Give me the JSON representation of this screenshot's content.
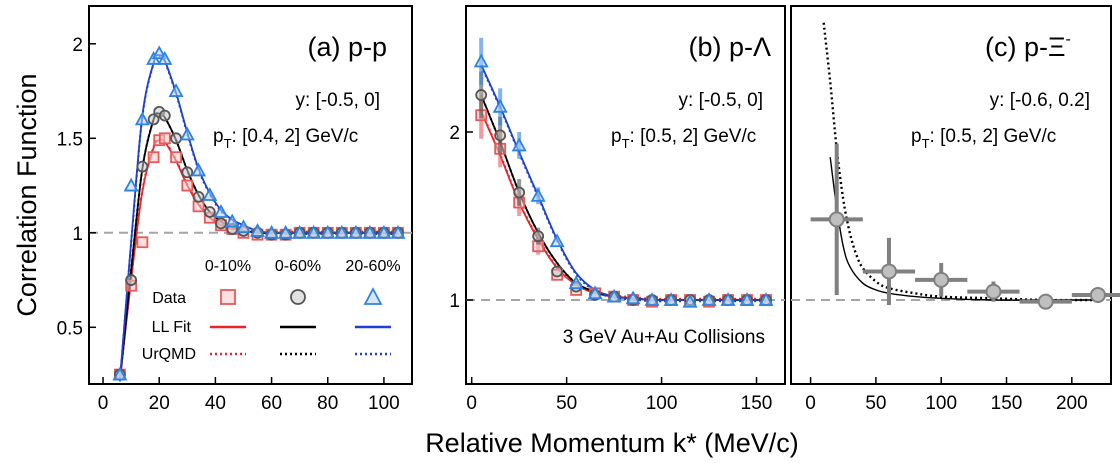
{
  "figure": {
    "y_axis_label": "Correlation Function",
    "x_axis_label": "Relative Momentum k* (MeV/c)",
    "baseline": 1,
    "baseline_color": "#a6a6a6"
  },
  "colors": {
    "c0_10": "#e8595a",
    "c0_10_fill": "#f6c6c6",
    "c0_60": "#555555",
    "c0_60_fill": "#c8c8c8",
    "c20_60": "#2f83e0",
    "c20_60_fill": "#b3d4f6",
    "fit_0_10": "#e8262a",
    "fit_0_60": "#000000",
    "fit_20_60": "#1e3fcf",
    "xi_data": "#808080",
    "xi_fill": "#bfbfbf"
  },
  "legend": {
    "centralities": [
      "0-10%",
      "0-60%",
      "20-60%"
    ],
    "rows": [
      "Data",
      "LL Fit",
      "UrQMD"
    ]
  },
  "panels": {
    "pp": {
      "title": "(a) p-p",
      "info_y": "y: [-0.5, 0]",
      "info_pt_main": "p",
      "info_pt_sub": "T",
      "info_pt_rest": ": [0.4, 2] GeV/c"
    },
    "pl": {
      "title": "(b) p-Λ",
      "info_y": "y: [-0.5, 0]",
      "info_pt_main": "p",
      "info_pt_sub": "T",
      "info_pt_rest": ": [0.5, 2] GeV/c",
      "note": "3 GeV Au+Au Collisions"
    },
    "px": {
      "title_main": "(c) p-Ξ",
      "title_sup": "-",
      "info_y": "y: [-0.6, 0.2]",
      "info_pt_main": "p",
      "info_pt_sub": "T",
      "info_pt_rest": ": [0.5, 2] GeV/c"
    }
  },
  "chart_data": [
    {
      "type": "scatter",
      "panel": "pp",
      "title": "(a) p-p",
      "xlim": [
        -5,
        110
      ],
      "ylim": [
        0.2,
        2.2
      ],
      "x_ticks": [
        0,
        20,
        40,
        60,
        80,
        100
      ],
      "y_ticks": [
        0.5,
        1,
        1.5,
        2
      ],
      "x": [
        6,
        10,
        14,
        18,
        20,
        22,
        26,
        30,
        34,
        38,
        42,
        46,
        50,
        55,
        60,
        65,
        70,
        75,
        80,
        85,
        90,
        95,
        100,
        105
      ],
      "series": [
        {
          "name": "0-10%",
          "data_y": [
            0.25,
            0.72,
            0.95,
            1.4,
            1.49,
            1.5,
            1.4,
            1.25,
            1.14,
            1.08,
            1.04,
            1.02,
            1.0,
            0.99,
            0.99,
            0.99,
            1.0,
            1.0,
            1.0,
            1.0,
            1.0,
            1.0,
            1.0,
            1.0
          ],
          "fit_y": [
            0.22,
            0.75,
            1.22,
            1.45,
            1.49,
            1.48,
            1.38,
            1.25,
            1.15,
            1.08,
            1.04,
            1.02,
            1.01,
            1.0,
            1.0,
            1.0,
            1.0,
            1.0,
            1.0,
            1.0,
            1.0,
            1.0,
            1.0,
            1.0
          ]
        },
        {
          "name": "0-60%",
          "data_y": [
            0.25,
            0.75,
            1.35,
            1.6,
            1.64,
            1.62,
            1.5,
            1.32,
            1.19,
            1.11,
            1.05,
            1.02,
            1.01,
            1.0,
            0.99,
            0.99,
            1.0,
            1.0,
            1.0,
            1.0,
            1.0,
            1.0,
            1.0,
            1.0
          ],
          "fit_y": [
            0.22,
            0.8,
            1.34,
            1.6,
            1.63,
            1.61,
            1.49,
            1.33,
            1.2,
            1.11,
            1.06,
            1.03,
            1.01,
            1.0,
            1.0,
            1.0,
            1.0,
            1.0,
            1.0,
            1.0,
            1.0,
            1.0,
            1.0,
            1.0
          ]
        },
        {
          "name": "20-60%",
          "data_y": [
            0.25,
            1.25,
            1.6,
            1.92,
            1.95,
            1.92,
            1.75,
            1.52,
            1.33,
            1.2,
            1.11,
            1.06,
            1.03,
            1.01,
            1.0,
            1.0,
            1.0,
            1.0,
            1.0,
            1.0,
            1.0,
            1.0,
            1.0,
            1.0
          ],
          "fit_y": [
            0.22,
            0.95,
            1.62,
            1.9,
            1.94,
            1.91,
            1.74,
            1.53,
            1.34,
            1.21,
            1.12,
            1.07,
            1.04,
            1.01,
            1.0,
            1.0,
            1.0,
            1.0,
            1.0,
            1.0,
            1.0,
            1.0,
            1.0,
            1.0
          ]
        }
      ]
    },
    {
      "type": "scatter",
      "panel": "pl",
      "title": "(b) p-Λ",
      "xlim": [
        -3,
        165
      ],
      "ylim": [
        0.5,
        2.75
      ],
      "x_ticks": [
        0,
        50,
        100,
        150
      ],
      "y_ticks": [
        1,
        2
      ],
      "x": [
        5,
        15,
        25,
        35,
        45,
        55,
        65,
        75,
        85,
        95,
        105,
        115,
        125,
        135,
        145,
        155
      ],
      "series": [
        {
          "name": "0-10%",
          "data_y": [
            2.1,
            1.9,
            1.58,
            1.32,
            1.15,
            1.06,
            1.04,
            1.02,
            1.0,
            0.99,
            1.0,
            1.0,
            0.99,
            1.0,
            1.0,
            1.0
          ],
          "fit_y": [
            2.12,
            1.86,
            1.58,
            1.36,
            1.19,
            1.09,
            1.04,
            1.02,
            1.01,
            1.0,
            1.0,
            1.0,
            1.0,
            1.0,
            1.0,
            1.0
          ]
        },
        {
          "name": "0-60%",
          "data_y": [
            2.22,
            1.98,
            1.64,
            1.38,
            1.17,
            1.08,
            1.03,
            1.02,
            1.0,
            1.0,
            1.0,
            1.0,
            1.0,
            1.0,
            1.0,
            1.0
          ],
          "fit_y": [
            2.22,
            1.94,
            1.64,
            1.4,
            1.22,
            1.1,
            1.05,
            1.02,
            1.01,
            1.0,
            1.0,
            1.0,
            1.0,
            1.0,
            1.0,
            1.0
          ]
        },
        {
          "name": "20-60%",
          "data_y": [
            2.42,
            2.15,
            1.92,
            1.62,
            1.35,
            1.1,
            1.04,
            1.02,
            1.01,
            1.0,
            1.0,
            0.99,
            1.0,
            1.0,
            1.0,
            1.0
          ],
          "fit_y": [
            2.4,
            2.15,
            1.88,
            1.62,
            1.36,
            1.16,
            1.06,
            1.02,
            1.01,
            1.0,
            1.0,
            1.0,
            1.0,
            1.0,
            1.0,
            1.0
          ]
        }
      ]
    },
    {
      "type": "scatter",
      "panel": "px",
      "title": "(c) p-Ξ-",
      "xlim": [
        -15,
        230
      ],
      "ylim": [
        0.5,
        2.75
      ],
      "x_ticks": [
        0,
        50,
        100,
        150,
        200
      ],
      "series": [
        {
          "name": "Data",
          "x": [
            20,
            60,
            100,
            140,
            180,
            220
          ],
          "y": [
            1.48,
            1.17,
            1.12,
            1.05,
            0.99,
            1.03
          ],
          "yerr": [
            0.45,
            0.2,
            0.1,
            0.06,
            0.04,
            0.03
          ],
          "xerr": [
            20,
            20,
            20,
            20,
            20,
            20
          ]
        },
        {
          "name": "LL Fit",
          "x": [
            15,
            20,
            25,
            30,
            40,
            50,
            60,
            80,
            100,
            140,
            180,
            220
          ],
          "y": [
            1.85,
            1.55,
            1.32,
            1.2,
            1.1,
            1.06,
            1.04,
            1.02,
            1.01,
            1.0,
            1.0,
            1.0
          ]
        },
        {
          "name": "UrQMD",
          "x": [
            10,
            15,
            20,
            25,
            30,
            35,
            40,
            50,
            60,
            80,
            100,
            140,
            180,
            220
          ],
          "y": [
            2.65,
            2.3,
            1.9,
            1.6,
            1.4,
            1.27,
            1.19,
            1.11,
            1.07,
            1.04,
            1.02,
            1.01,
            1.0,
            1.0
          ]
        }
      ]
    }
  ]
}
